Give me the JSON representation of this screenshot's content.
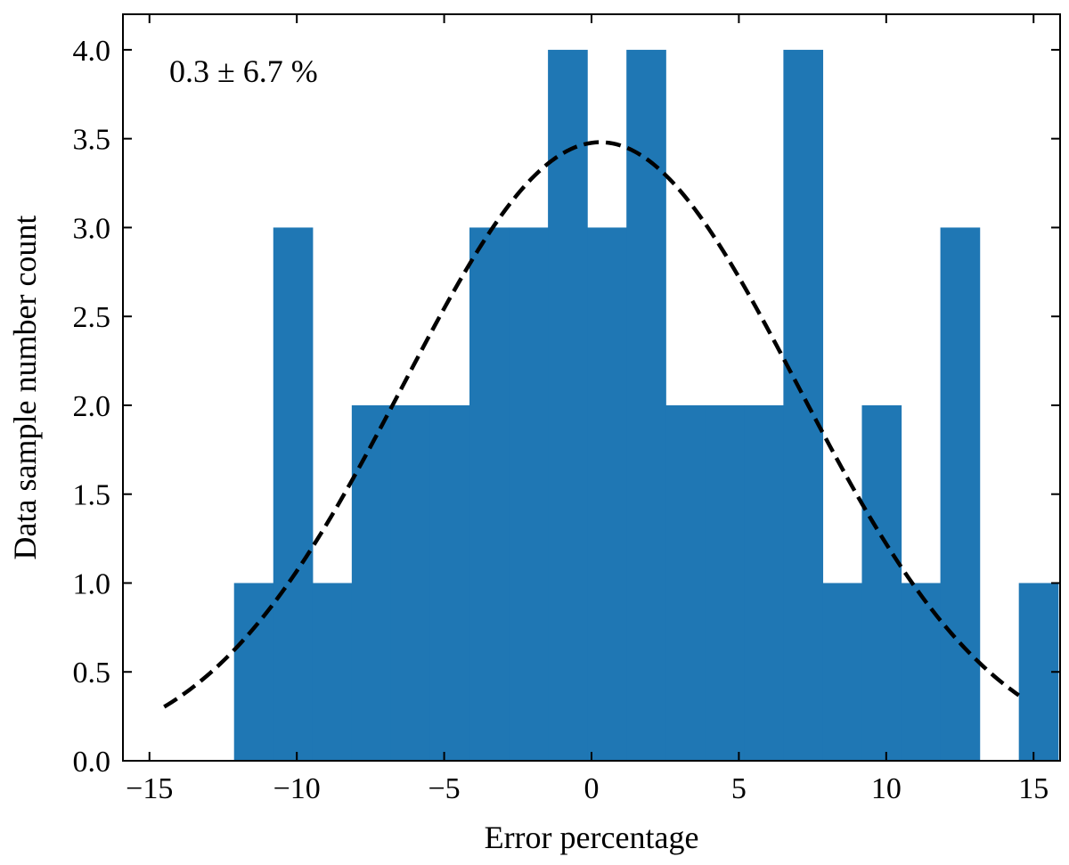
{
  "chart_data": {
    "type": "bar",
    "title": "",
    "xlabel": "Error percentage",
    "ylabel": "Data sample number count",
    "annotation": "0.3 ± 6.7 %",
    "xlim": [
      -15.9,
      15.9
    ],
    "ylim": [
      0,
      4.2
    ],
    "xticks": [
      -15,
      -10,
      -5,
      0,
      5,
      10,
      15
    ],
    "xtick_labels": [
      "−15",
      "−10",
      "−5",
      "0",
      "5",
      "10",
      "15"
    ],
    "yticks": [
      0,
      0.5,
      1,
      1.5,
      2,
      2.5,
      3,
      3.5,
      4
    ],
    "ytick_labels": [
      "0.0",
      "0.5",
      "1.0",
      "1.5",
      "2.0",
      "2.5",
      "3.0",
      "3.5",
      "4.0"
    ],
    "grid": false,
    "bar_color": "#1f77b4",
    "bins": {
      "start": -12.13,
      "width": 1.3315,
      "counts": [
        1,
        3,
        1,
        2,
        2,
        2,
        3,
        3,
        4,
        3,
        4,
        2,
        2,
        2,
        4,
        1,
        2,
        1,
        3,
        0,
        1
      ]
    },
    "series": [
      {
        "type": "gaussian-fit",
        "mean": 0.3,
        "std": 6.7,
        "amplitude": 3.48,
        "x_range": [
          -14.5,
          14.5
        ],
        "line_style": "dashed",
        "color": "#000000"
      }
    ]
  }
}
